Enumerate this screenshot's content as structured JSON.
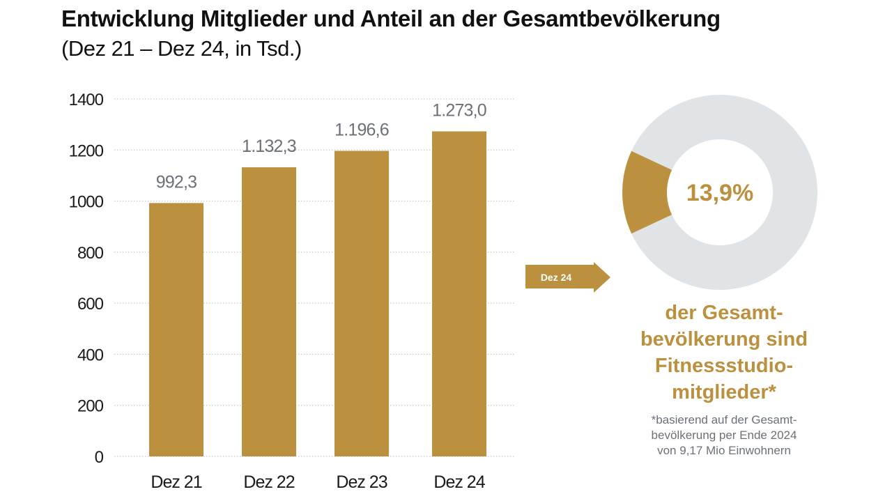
{
  "colors": {
    "bar": "#bb913f",
    "donut_rest": "#e1e4e7",
    "value_label": "#6b7079",
    "text": "#111111",
    "grid": "#c9c9c9"
  },
  "chart_data": [
    {
      "type": "bar",
      "title": "Entwicklung Mitglieder und Anteil an der Gesamtbevölkerung",
      "subtitle": "(Dez 21 – Dez 24, in Tsd.)",
      "categories": [
        "Dez 21",
        "Dez 22",
        "Dez 23",
        "Dez 24"
      ],
      "values": [
        992.3,
        1132.3,
        1196.6,
        1273.0
      ],
      "value_labels": [
        "992,3",
        "1.132,3",
        "1.196,6",
        "1.273,0"
      ],
      "xlabel": "",
      "ylabel": "",
      "ylim": [
        0,
        1400
      ],
      "yticks": [
        0,
        200,
        400,
        600,
        800,
        1000,
        1200,
        1400
      ],
      "ytick_labels": [
        "0",
        "200",
        "400",
        "600",
        "800",
        "1000",
        "1200",
        "1400"
      ],
      "grid": true,
      "grid_style": "dotted"
    },
    {
      "type": "pie",
      "variant": "donut",
      "slices": [
        {
          "name": "Fitnessstudiomitglieder",
          "value": 13.9
        },
        {
          "name": "Rest der Gesamtbevölkerung",
          "value": 86.1
        }
      ],
      "center_label": "13,9%",
      "pointer_label": "Dez 24"
    }
  ],
  "caption": {
    "lines": [
      "der Gesamt-",
      "bevölkerung sind",
      "Fitnessstudio-",
      "mitglieder*"
    ]
  },
  "footnote": {
    "lines": [
      "*basierend auf der Gesamt-",
      "bevölkerung per Ende 2024",
      "von 9,17 Mio Einwohnern"
    ]
  }
}
